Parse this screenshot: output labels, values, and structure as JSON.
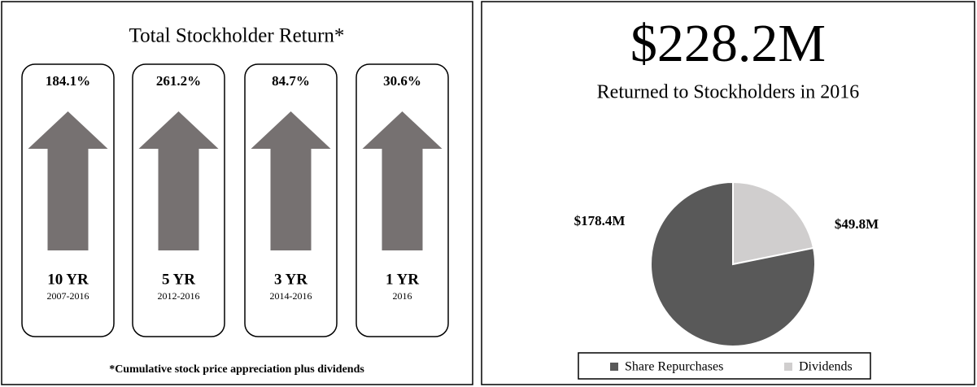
{
  "left": {
    "title": "Total Stockholder Return*",
    "cards": [
      {
        "return": "184.1%",
        "period": "10 YR",
        "range": "2007-2016"
      },
      {
        "return": "261.2%",
        "period": "5 YR",
        "range": "2012-2016"
      },
      {
        "return": "84.7%",
        "period": "3 YR",
        "range": "2014-2016"
      },
      {
        "return": "30.6%",
        "period": "1 YR",
        "range": "2016"
      }
    ],
    "footnote": "*Cumulative stock price appreciation plus dividends"
  },
  "chart_data": {
    "type": "pie",
    "title": "$228.2M",
    "subtitle": "Returned to Stockholders in 2016",
    "categories": [
      "Share Repurchases",
      "Dividends"
    ],
    "values": [
      178.4,
      49.8
    ],
    "value_labels": [
      "$178.4M",
      "$49.8M"
    ],
    "colors": [
      "#595959",
      "#d0cece"
    ]
  }
}
